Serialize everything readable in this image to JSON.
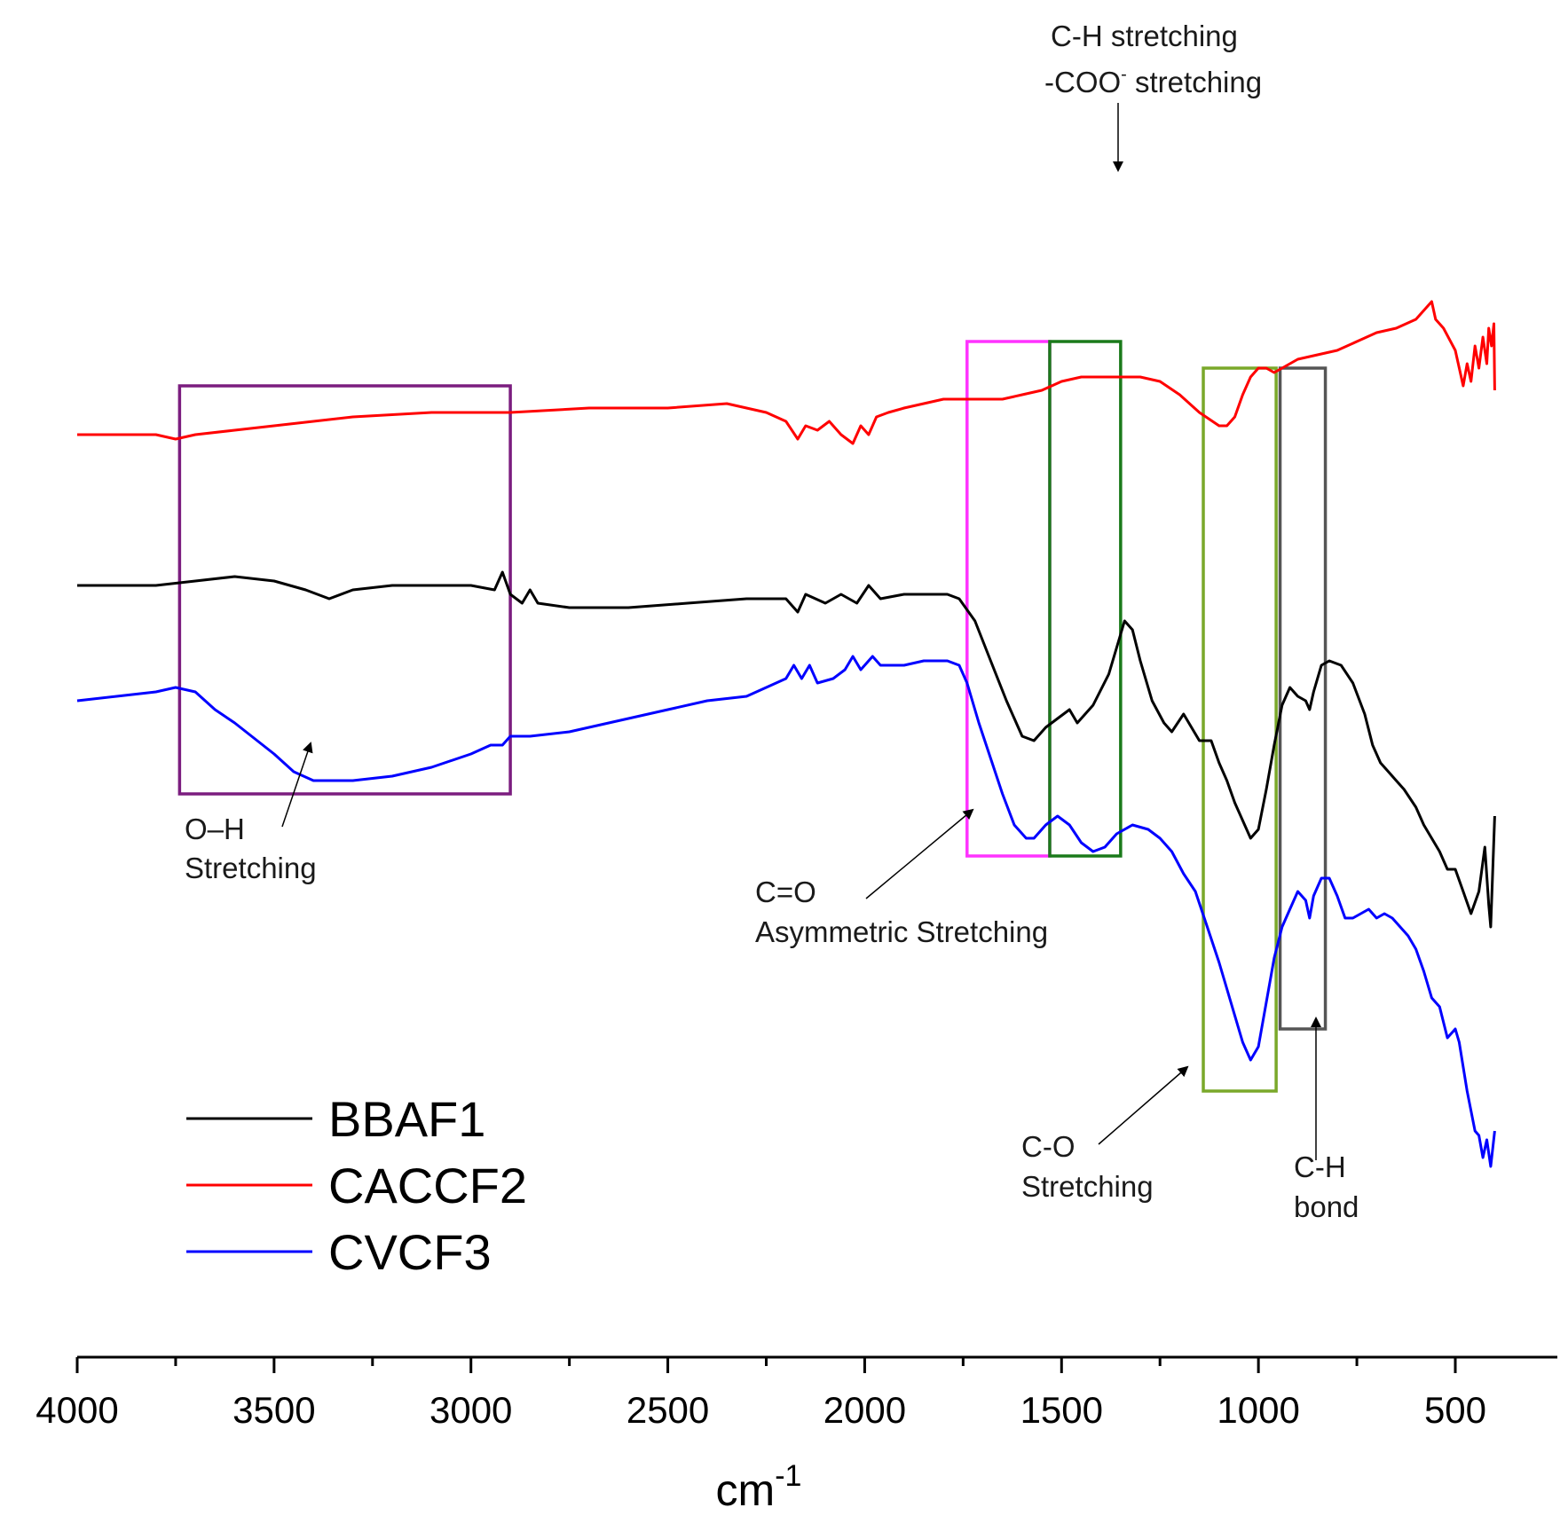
{
  "chart_data": {
    "type": "line",
    "title": "",
    "xlabel": "cm",
    "xlabel_superscript": "-1",
    "ylabel": "",
    "xlim": [
      4000,
      300
    ],
    "x_reversed": true,
    "y_axis_shown": false,
    "grid": false,
    "legend_position": "bottom-left",
    "x_ticks": [
      {
        "value": 4000,
        "label": "4000"
      },
      {
        "value": 3500,
        "label": "3500"
      },
      {
        "value": 3000,
        "label": "3000"
      },
      {
        "value": 2500,
        "label": "2500"
      },
      {
        "value": 2000,
        "label": "2000"
      },
      {
        "value": 1500,
        "label": "1500"
      },
      {
        "value": 1000,
        "label": "1000"
      },
      {
        "value": 500,
        "label": "500"
      }
    ],
    "x_minor_ticks": [
      3750,
      3250,
      2750,
      2250,
      1750,
      1250,
      750
    ],
    "series": [
      {
        "name": "BBAF1",
        "color": "#000000",
        "points": [
          [
            4000,
            0.72
          ],
          [
            3800,
            0.72
          ],
          [
            3700,
            0.73
          ],
          [
            3600,
            0.74
          ],
          [
            3500,
            0.73
          ],
          [
            3420,
            0.71
          ],
          [
            3360,
            0.69
          ],
          [
            3300,
            0.71
          ],
          [
            3200,
            0.72
          ],
          [
            3100,
            0.72
          ],
          [
            3000,
            0.72
          ],
          [
            2940,
            0.71
          ],
          [
            2920,
            0.75
          ],
          [
            2900,
            0.7
          ],
          [
            2870,
            0.68
          ],
          [
            2850,
            0.71
          ],
          [
            2830,
            0.68
          ],
          [
            2750,
            0.67
          ],
          [
            2600,
            0.67
          ],
          [
            2450,
            0.68
          ],
          [
            2300,
            0.69
          ],
          [
            2200,
            0.69
          ],
          [
            2170,
            0.66
          ],
          [
            2150,
            0.7
          ],
          [
            2100,
            0.68
          ],
          [
            2060,
            0.7
          ],
          [
            2020,
            0.68
          ],
          [
            1990,
            0.72
          ],
          [
            1960,
            0.69
          ],
          [
            1900,
            0.7
          ],
          [
            1850,
            0.7
          ],
          [
            1790,
            0.7
          ],
          [
            1760,
            0.69
          ],
          [
            1720,
            0.64
          ],
          [
            1680,
            0.55
          ],
          [
            1640,
            0.46
          ],
          [
            1600,
            0.38
          ],
          [
            1570,
            0.37
          ],
          [
            1540,
            0.4
          ],
          [
            1510,
            0.42
          ],
          [
            1480,
            0.44
          ],
          [
            1460,
            0.41
          ],
          [
            1420,
            0.45
          ],
          [
            1380,
            0.52
          ],
          [
            1340,
            0.64
          ],
          [
            1320,
            0.62
          ],
          [
            1300,
            0.55
          ],
          [
            1270,
            0.46
          ],
          [
            1240,
            0.41
          ],
          [
            1220,
            0.39
          ],
          [
            1190,
            0.43
          ],
          [
            1170,
            0.4
          ],
          [
            1150,
            0.37
          ],
          [
            1120,
            0.37
          ],
          [
            1100,
            0.32
          ],
          [
            1080,
            0.28
          ],
          [
            1060,
            0.23
          ],
          [
            1040,
            0.19
          ],
          [
            1020,
            0.15
          ],
          [
            1000,
            0.17
          ],
          [
            980,
            0.26
          ],
          [
            960,
            0.36
          ],
          [
            940,
            0.45
          ],
          [
            920,
            0.49
          ],
          [
            900,
            0.47
          ],
          [
            880,
            0.46
          ],
          [
            870,
            0.44
          ],
          [
            860,
            0.48
          ],
          [
            840,
            0.54
          ],
          [
            820,
            0.55
          ],
          [
            790,
            0.54
          ],
          [
            760,
            0.5
          ],
          [
            730,
            0.43
          ],
          [
            710,
            0.36
          ],
          [
            690,
            0.32
          ],
          [
            670,
            0.3
          ],
          [
            650,
            0.28
          ],
          [
            630,
            0.26
          ],
          [
            600,
            0.22
          ],
          [
            580,
            0.18
          ],
          [
            560,
            0.15
          ],
          [
            540,
            0.12
          ],
          [
            520,
            0.08
          ],
          [
            500,
            0.08
          ],
          [
            480,
            0.03
          ],
          [
            460,
            -0.02
          ],
          [
            440,
            0.03
          ],
          [
            425,
            0.13
          ],
          [
            415,
            0.0
          ],
          [
            410,
            -0.05
          ],
          [
            400,
            0.2
          ]
        ]
      },
      {
        "name": "CACCF2",
        "color": "#ff0000",
        "points": [
          [
            4000,
            1.06
          ],
          [
            3800,
            1.06
          ],
          [
            3750,
            1.05
          ],
          [
            3700,
            1.06
          ],
          [
            3600,
            1.07
          ],
          [
            3500,
            1.08
          ],
          [
            3400,
            1.09
          ],
          [
            3300,
            1.1
          ],
          [
            3100,
            1.11
          ],
          [
            2900,
            1.11
          ],
          [
            2700,
            1.12
          ],
          [
            2500,
            1.12
          ],
          [
            2350,
            1.13
          ],
          [
            2250,
            1.11
          ],
          [
            2200,
            1.09
          ],
          [
            2170,
            1.05
          ],
          [
            2150,
            1.08
          ],
          [
            2120,
            1.07
          ],
          [
            2090,
            1.09
          ],
          [
            2060,
            1.06
          ],
          [
            2030,
            1.04
          ],
          [
            2010,
            1.08
          ],
          [
            1990,
            1.06
          ],
          [
            1970,
            1.1
          ],
          [
            1940,
            1.11
          ],
          [
            1900,
            1.12
          ],
          [
            1850,
            1.13
          ],
          [
            1800,
            1.14
          ],
          [
            1750,
            1.14
          ],
          [
            1700,
            1.14
          ],
          [
            1650,
            1.14
          ],
          [
            1600,
            1.15
          ],
          [
            1550,
            1.16
          ],
          [
            1500,
            1.18
          ],
          [
            1450,
            1.19
          ],
          [
            1400,
            1.19
          ],
          [
            1350,
            1.19
          ],
          [
            1300,
            1.19
          ],
          [
            1250,
            1.18
          ],
          [
            1200,
            1.15
          ],
          [
            1150,
            1.11
          ],
          [
            1100,
            1.08
          ],
          [
            1080,
            1.08
          ],
          [
            1060,
            1.1
          ],
          [
            1040,
            1.15
          ],
          [
            1020,
            1.19
          ],
          [
            1000,
            1.21
          ],
          [
            980,
            1.21
          ],
          [
            960,
            1.2
          ],
          [
            940,
            1.21
          ],
          [
            900,
            1.23
          ],
          [
            850,
            1.24
          ],
          [
            800,
            1.25
          ],
          [
            750,
            1.27
          ],
          [
            700,
            1.29
          ],
          [
            650,
            1.3
          ],
          [
            600,
            1.32
          ],
          [
            560,
            1.36
          ],
          [
            550,
            1.32
          ],
          [
            530,
            1.3
          ],
          [
            500,
            1.25
          ],
          [
            480,
            1.17
          ],
          [
            470,
            1.22
          ],
          [
            460,
            1.18
          ],
          [
            450,
            1.26
          ],
          [
            440,
            1.21
          ],
          [
            430,
            1.28
          ],
          [
            420,
            1.22
          ],
          [
            415,
            1.3
          ],
          [
            408,
            1.26
          ],
          [
            402,
            1.31
          ],
          [
            400,
            1.16
          ]
        ]
      },
      {
        "name": "CVCF3",
        "color": "#0000ff",
        "points": [
          [
            4000,
            0.46
          ],
          [
            3900,
            0.47
          ],
          [
            3800,
            0.48
          ],
          [
            3750,
            0.49
          ],
          [
            3700,
            0.48
          ],
          [
            3650,
            0.44
          ],
          [
            3600,
            0.41
          ],
          [
            3500,
            0.34
          ],
          [
            3450,
            0.3
          ],
          [
            3400,
            0.28
          ],
          [
            3350,
            0.28
          ],
          [
            3300,
            0.28
          ],
          [
            3200,
            0.29
          ],
          [
            3100,
            0.31
          ],
          [
            3000,
            0.34
          ],
          [
            2950,
            0.36
          ],
          [
            2920,
            0.36
          ],
          [
            2900,
            0.38
          ],
          [
            2850,
            0.38
          ],
          [
            2750,
            0.39
          ],
          [
            2650,
            0.41
          ],
          [
            2500,
            0.44
          ],
          [
            2400,
            0.46
          ],
          [
            2300,
            0.47
          ],
          [
            2250,
            0.49
          ],
          [
            2200,
            0.51
          ],
          [
            2180,
            0.54
          ],
          [
            2160,
            0.51
          ],
          [
            2140,
            0.54
          ],
          [
            2120,
            0.5
          ],
          [
            2080,
            0.51
          ],
          [
            2050,
            0.53
          ],
          [
            2030,
            0.56
          ],
          [
            2010,
            0.53
          ],
          [
            1980,
            0.56
          ],
          [
            1960,
            0.54
          ],
          [
            1900,
            0.54
          ],
          [
            1850,
            0.55
          ],
          [
            1790,
            0.55
          ],
          [
            1760,
            0.54
          ],
          [
            1740,
            0.5
          ],
          [
            1710,
            0.41
          ],
          [
            1680,
            0.33
          ],
          [
            1650,
            0.25
          ],
          [
            1620,
            0.18
          ],
          [
            1590,
            0.15
          ],
          [
            1570,
            0.15
          ],
          [
            1540,
            0.18
          ],
          [
            1510,
            0.2
          ],
          [
            1480,
            0.18
          ],
          [
            1450,
            0.14
          ],
          [
            1420,
            0.12
          ],
          [
            1390,
            0.13
          ],
          [
            1360,
            0.16
          ],
          [
            1320,
            0.18
          ],
          [
            1280,
            0.17
          ],
          [
            1250,
            0.15
          ],
          [
            1220,
            0.12
          ],
          [
            1190,
            0.07
          ],
          [
            1160,
            0.03
          ],
          [
            1130,
            -0.05
          ],
          [
            1100,
            -0.13
          ],
          [
            1070,
            -0.22
          ],
          [
            1040,
            -0.31
          ],
          [
            1020,
            -0.35
          ],
          [
            1000,
            -0.32
          ],
          [
            980,
            -0.22
          ],
          [
            960,
            -0.12
          ],
          [
            940,
            -0.05
          ],
          [
            920,
            -0.01
          ],
          [
            900,
            0.03
          ],
          [
            880,
            0.01
          ],
          [
            870,
            -0.03
          ],
          [
            860,
            0.02
          ],
          [
            840,
            0.06
          ],
          [
            820,
            0.06
          ],
          [
            800,
            0.02
          ],
          [
            780,
            -0.03
          ],
          [
            760,
            -0.03
          ],
          [
            740,
            -0.02
          ],
          [
            720,
            -0.01
          ],
          [
            700,
            -0.03
          ],
          [
            680,
            -0.02
          ],
          [
            660,
            -0.03
          ],
          [
            640,
            -0.05
          ],
          [
            620,
            -0.07
          ],
          [
            600,
            -0.1
          ],
          [
            580,
            -0.15
          ],
          [
            560,
            -0.21
          ],
          [
            540,
            -0.23
          ],
          [
            520,
            -0.3
          ],
          [
            500,
            -0.28
          ],
          [
            490,
            -0.31
          ],
          [
            470,
            -0.42
          ],
          [
            450,
            -0.51
          ],
          [
            440,
            -0.52
          ],
          [
            430,
            -0.57
          ],
          [
            420,
            -0.53
          ],
          [
            410,
            -0.59
          ],
          [
            400,
            -0.51
          ]
        ]
      }
    ],
    "boxes": [
      {
        "x1": 3740,
        "x2": 2900,
        "y_top": 1.17,
        "y_bottom": 0.25,
        "color": "#7b1d7f"
      },
      {
        "x1": 1740,
        "x2": 1530,
        "y_top": 1.27,
        "y_bottom": 0.11,
        "color": "#ff33ff"
      },
      {
        "x1": 1530,
        "x2": 1350,
        "y_top": 1.27,
        "y_bottom": 0.11,
        "color": "#1a7a1a"
      },
      {
        "x1": 1140,
        "x2": 955,
        "y_top": 1.21,
        "y_bottom": -0.42,
        "color": "#7aa82a"
      },
      {
        "x1": 945,
        "x2": 830,
        "y_top": 1.21,
        "y_bottom": -0.28,
        "color": "#555555"
      }
    ],
    "annotations": [
      {
        "lines": [
          "O–H",
          "Stretching"
        ]
      },
      {
        "lines": [
          "C=O",
          "Asymmetric Stretching"
        ]
      },
      {
        "lines": [
          "C-H stretching"
        ]
      },
      {
        "lines": [
          "-COO",
          " stretching"
        ],
        "superscript": "-"
      },
      {
        "lines": [
          "C-O",
          "Stretching"
        ]
      },
      {
        "lines": [
          "C-H",
          "bond"
        ]
      }
    ]
  }
}
